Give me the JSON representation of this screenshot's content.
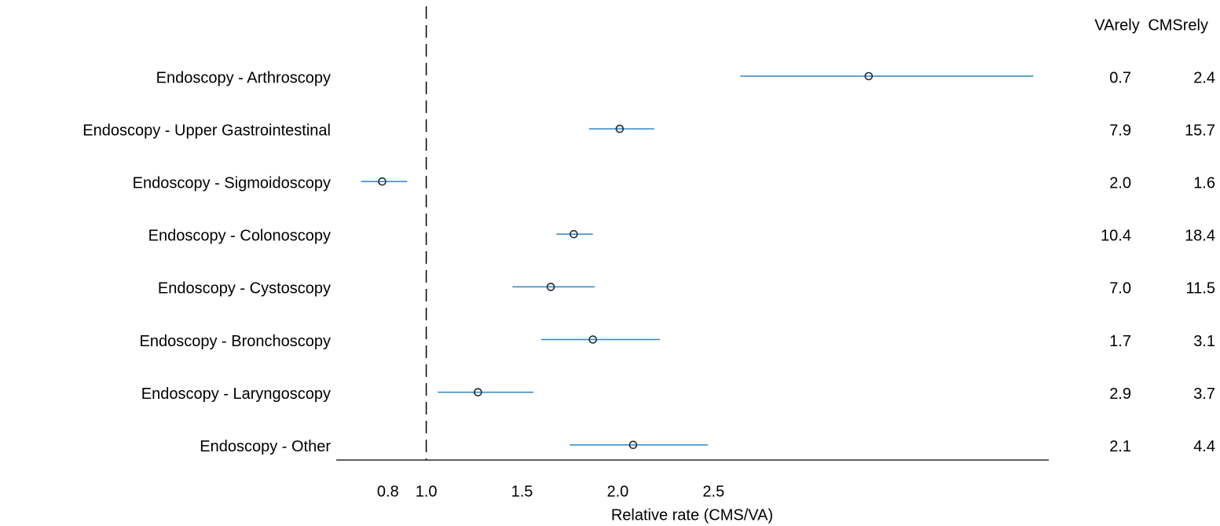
{
  "chart_data": {
    "type": "forest",
    "categories": [
      "Endoscopy - Arthroscopy",
      "Endoscopy - Upper Gastrointestinal",
      "Endoscopy - Sigmoidoscopy",
      "Endoscopy - Colonoscopy",
      "Endoscopy - Cystoscopy",
      "Endoscopy - Bronchoscopy",
      "Endoscopy - Laryngoscopy",
      "Endoscopy - Other"
    ],
    "values": [
      3.31,
      2.01,
      0.77,
      1.77,
      1.65,
      1.87,
      1.27,
      2.08
    ],
    "low": [
      2.64,
      1.85,
      0.66,
      1.68,
      1.45,
      1.6,
      1.06,
      1.75
    ],
    "high": [
      4.17,
      2.19,
      0.9,
      1.87,
      1.88,
      2.22,
      1.56,
      2.47
    ],
    "color": "#2e86c1",
    "xlabel": "Relative rate (CMS/VA)",
    "xlim": [
      0.53,
      4.25
    ],
    "xticks": [
      0.8,
      {
        "value": 1,
        "label": "1.0"
      },
      1.5,
      {
        "value": 2,
        "label": "2.0"
      },
      2.5
    ],
    "reference_line": 1,
    "columns": [
      {
        "header": "VArely",
        "values": [
          "0.7",
          "7.9",
          "2.0",
          "10.4",
          "7.0",
          "1.7",
          "2.9",
          "2.1"
        ]
      },
      {
        "header": "CMSrely",
        "values": [
          "2.4",
          "15.7",
          "1.6",
          "18.4",
          "11.5",
          "3.1",
          "3.7",
          "4.4"
        ]
      }
    ]
  }
}
